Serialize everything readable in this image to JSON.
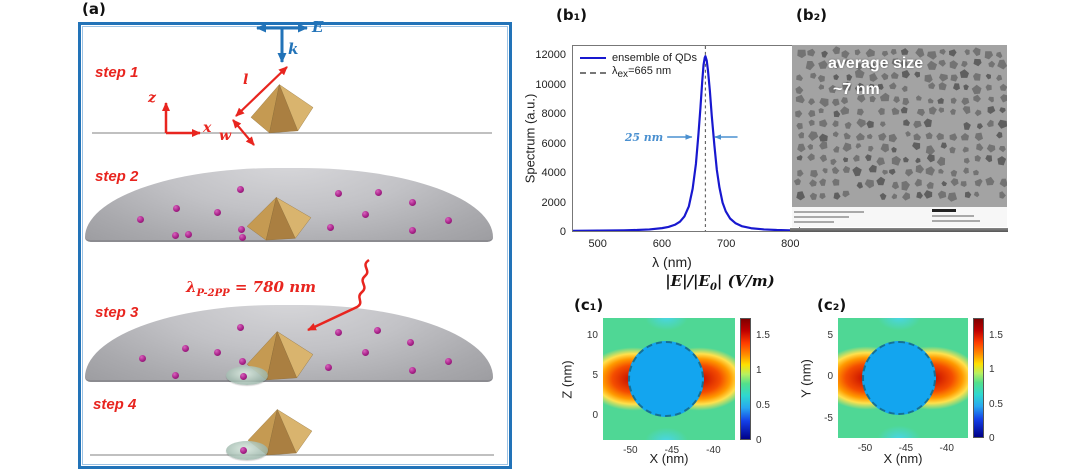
{
  "colors": {
    "accent_blue": "#2273b8",
    "label_red": "#e8251f",
    "gold_light": "#d9b46e",
    "gold_mid": "#c59a52",
    "gold_dark": "#aa7f41",
    "qd_purple": "#a82289",
    "curve_blue": "#1818cf",
    "annotation_blue": "#4a90d0",
    "map_green": "#4fd795",
    "circle_blue": "#13a5ef"
  },
  "panel_a": {
    "label": "(a)",
    "steps": [
      "step 1",
      "step 2",
      "step 3",
      "step 4"
    ],
    "vector_E": "E",
    "vector_k": "k",
    "axis_z": "z",
    "axis_x": "x",
    "dim_l": "l",
    "dim_w": "w",
    "wavelength_pre": "λ",
    "wavelength_sub": "P-2PP",
    "wavelength_post": " = 780 nm",
    "qd_step2": [
      [
        140,
        219
      ],
      [
        176,
        208
      ],
      [
        188,
        234
      ],
      [
        217,
        212
      ],
      [
        241,
        229
      ],
      [
        240,
        189
      ],
      [
        338,
        193
      ],
      [
        378,
        192
      ],
      [
        412,
        202
      ],
      [
        365,
        214
      ],
      [
        330,
        227
      ],
      [
        412,
        230
      ],
      [
        448,
        220
      ],
      [
        175,
        235
      ],
      [
        242,
        237
      ]
    ],
    "qd_step3": [
      [
        240,
        327
      ],
      [
        338,
        332
      ],
      [
        377,
        330
      ],
      [
        410,
        342
      ],
      [
        365,
        352
      ],
      [
        328,
        367
      ],
      [
        412,
        370
      ],
      [
        448,
        361
      ],
      [
        142,
        358
      ],
      [
        185,
        348
      ],
      [
        217,
        352
      ],
      [
        242,
        361
      ],
      [
        175,
        375
      ],
      [
        243,
        376
      ]
    ],
    "qd_step4": [
      [
        243,
        450
      ]
    ]
  },
  "panel_b1": {
    "label": "(b₁)",
    "ylabel": "Spectrum (a.u.)",
    "xlabel": "λ (nm)",
    "legend1": "ensemble of QDs",
    "legend2_pre": "λ",
    "legend2_sub": "ex",
    "legend2_post": "=665 nm",
    "annotation": "25 nm"
  },
  "panel_b2": {
    "label": "(b₂)",
    "caption_line1": "average size",
    "caption_line2": "~7 nm",
    "tem": {
      "cols": 18,
      "rows": 13,
      "cell": 11.9,
      "bg": "#a3a3a3",
      "mid": "#6e6e6e",
      "dark": "#585858"
    }
  },
  "panel_c": {
    "title_p1": "|E|/|E",
    "title_sub": "0",
    "title_p2": "| (V/m)",
    "c1_label": "(c₁)",
    "c2_label": "(c₂)",
    "c1_ylabel": "Z (nm)",
    "c2_ylabel": "Y (nm)",
    "xlabel": "X (nm)"
  },
  "chart_data": [
    {
      "id": "qd_spectrum",
      "type": "line",
      "xlabel": "λ (nm)",
      "ylabel": "Spectrum (a.u.)",
      "xlim": [
        460,
        815
      ],
      "ylim": [
        0,
        12700
      ],
      "xticks": [
        500,
        600,
        700,
        800
      ],
      "yticks": [
        0,
        2000,
        4000,
        6000,
        8000,
        10000,
        12000
      ],
      "excitation_nm": 665,
      "peak_nm": 668,
      "peak_value": 12000,
      "fwhm_nm": 25,
      "legend": [
        "ensemble of QDs",
        "λ_ex=665 nm"
      ],
      "series": [
        {
          "name": "ensemble of QDs",
          "points": [
            [
              460,
              15
            ],
            [
              480,
              20
            ],
            [
              500,
              25
            ],
            [
              520,
              32
            ],
            [
              540,
              45
            ],
            [
              560,
              70
            ],
            [
              580,
              110
            ],
            [
              600,
              200
            ],
            [
              610,
              280
            ],
            [
              620,
              430
            ],
            [
              628,
              640
            ],
            [
              635,
              1000
            ],
            [
              642,
              1700
            ],
            [
              648,
              2900
            ],
            [
              653,
              4600
            ],
            [
              657,
              6600
            ],
            [
              660,
              8400
            ],
            [
              663,
              10300
            ],
            [
              665,
              11400
            ],
            [
              667,
              11900
            ],
            [
              668,
              12000
            ],
            [
              670,
              11700
            ],
            [
              672,
              11000
            ],
            [
              675,
              9600
            ],
            [
              678,
              7900
            ],
            [
              682,
              5900
            ],
            [
              686,
              4200
            ],
            [
              690,
              3000
            ],
            [
              695,
              1950
            ],
            [
              700,
              1350
            ],
            [
              707,
              850
            ],
            [
              715,
              540
            ],
            [
              725,
              330
            ],
            [
              740,
              190
            ],
            [
              760,
              110
            ],
            [
              780,
              70
            ],
            [
              800,
              50
            ],
            [
              810,
              45
            ]
          ]
        }
      ]
    },
    {
      "id": "c1_field_map",
      "type": "heatmap",
      "xlabel": "X (nm)",
      "ylabel": "Z (nm)",
      "xlim": [
        -53.3,
        -37.4
      ],
      "ylim": [
        -3,
        12.3
      ],
      "xticks": [
        -50,
        -45,
        -40
      ],
      "yticks": [
        10,
        5,
        0
      ],
      "clim": [
        0,
        1.75
      ],
      "colorbar_ticks": [
        1.5,
        1,
        0.5,
        0
      ],
      "pattern": "blue nanosphere centered near x=-46, z=4 with red dipolar hotspots on left/right sides, green background ~1"
    },
    {
      "id": "c2_field_map",
      "type": "heatmap",
      "xlabel": "X (nm)",
      "ylabel": "Y (nm)",
      "xlim": [
        -53.3,
        -37.4
      ],
      "ylim": [
        -7.3,
        7.1
      ],
      "xticks": [
        -50,
        -45,
        -40
      ],
      "yticks": [
        5,
        0,
        -5
      ],
      "clim": [
        0,
        1.75
      ],
      "colorbar_ticks": [
        1.5,
        1,
        0.5,
        0
      ],
      "pattern": "blue nanosphere centered near x=-46, y=0 with red dipolar hotspots on left/right sides, green background ~1"
    }
  ]
}
